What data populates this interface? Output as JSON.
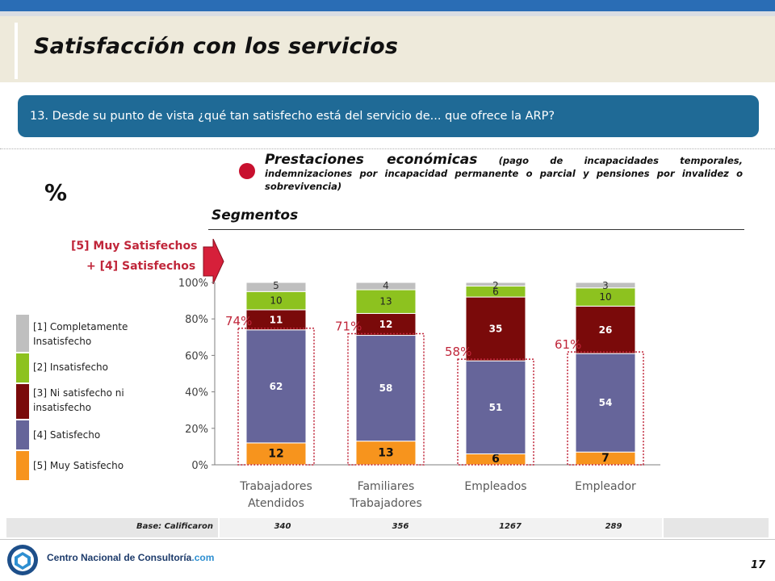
{
  "title": "Satisfacción con los servicios",
  "question": "13. Desde su punto de vista ¿qué tan satisfecho está del servicio de... que ofrece la ARP?",
  "subtitle": {
    "main": "Prestaciones económicas",
    "detail": "(pago de incapacidades temporales, indemnizaciones por incapacidad permanente o parcial y pensiones por invalidez o sobrevivencia)"
  },
  "percent_sign": "%",
  "segment_header": "Segmentos",
  "top2_label_line1": "[5] Muy Satisfechos",
  "top2_label_line2": "+ [4]  Satisfechos",
  "legend": [
    {
      "label_line1": "[1] Completamente",
      "label_line2": "Insatisfecho",
      "color": "#bfbfbf"
    },
    {
      "label_line1": "[2] Insatisfecho",
      "label_line2": "",
      "color": "#8dc21f"
    },
    {
      "label_line1": "[3] Ni satisfecho ni",
      "label_line2": "insatisfecho",
      "color": "#7a0a0a"
    },
    {
      "label_line1": "[4] Satisfecho",
      "label_line2": "",
      "color": "#66659a"
    },
    {
      "label_line1": "[5] Muy Satisfecho",
      "label_line2": "",
      "color": "#f7941d"
    }
  ],
  "base": {
    "label": "Base: Calificaron",
    "values": [
      "340",
      "356",
      "1267",
      "289"
    ]
  },
  "footer": {
    "company": "Centro Nacional de Consultoría",
    "domain": ".com",
    "page": "17"
  },
  "chart_data": {
    "type": "bar",
    "stacked": true,
    "categories": [
      [
        "Trabajadores",
        "Atendidos"
      ],
      [
        "Familiares",
        "Trabajadores"
      ],
      [
        "Empleados"
      ],
      [
        "Empleador"
      ]
    ],
    "yticks": [
      "0%",
      "20%",
      "40%",
      "60%",
      "80%",
      "100%"
    ],
    "ylim": [
      0,
      100
    ],
    "series": [
      {
        "name": "[5] Muy Satisfecho",
        "color": "#f7941d",
        "values": [
          12,
          13,
          6,
          7
        ],
        "labels": [
          "12",
          "13",
          "6",
          "7"
        ]
      },
      {
        "name": "[4] Satisfecho",
        "color": "#66659a",
        "values": [
          62,
          58,
          51,
          54
        ],
        "labels": [
          "62",
          "58",
          "51",
          "54"
        ]
      },
      {
        "name": "[3] Ni satisfecho ni insatisfecho",
        "color": "#7a0a0a",
        "values": [
          11,
          12,
          35,
          26
        ],
        "labels": [
          "11",
          "12",
          "35",
          "26"
        ]
      },
      {
        "name": "[2] Insatisfecho",
        "color": "#8dc21f",
        "values": [
          10,
          13,
          6,
          10
        ],
        "labels": [
          "10",
          "13",
          "6",
          "10"
        ]
      },
      {
        "name": "[1] Completamente Insatisfecho",
        "color": "#bfbfbf",
        "values": [
          5,
          4,
          2,
          3
        ],
        "labels": [
          "5",
          "4",
          "2",
          "3"
        ]
      }
    ],
    "top2_totals": [
      "74%",
      "71%",
      "58%",
      "61%"
    ],
    "top2_color": "#c0263a"
  }
}
